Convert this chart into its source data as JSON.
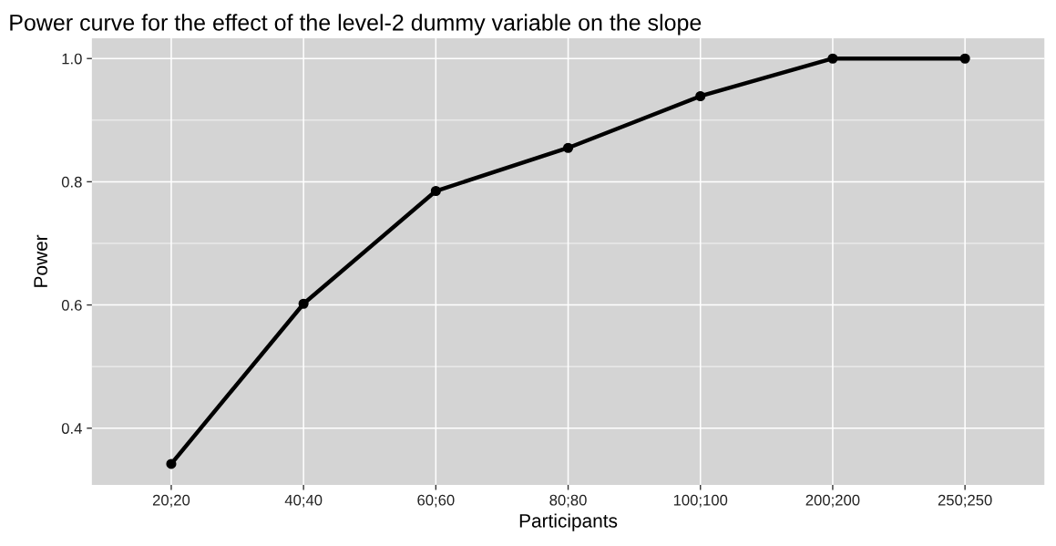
{
  "chart_data": {
    "type": "line",
    "title": "Power curve for the effect of the level-2 dummy variable on the slope",
    "xlabel": "Participants",
    "ylabel": "Power",
    "categories": [
      "20;20",
      "40;40",
      "60;60",
      "80;80",
      "100;100",
      "200;200",
      "250;250"
    ],
    "series": [
      {
        "color": "#000000",
        "values": [
          0.342,
          0.602,
          0.785,
          0.855,
          0.939,
          1.0,
          1.0
        ]
      }
    ],
    "ylim": [
      0.308,
      1.033
    ],
    "yticks": [
      {
        "value": 0.4,
        "label": "0.4"
      },
      {
        "value": 0.6,
        "label": "0.6"
      },
      {
        "value": 0.8,
        "label": "0.8"
      },
      {
        "value": 1.0,
        "label": "1.0"
      }
    ],
    "grid": true,
    "marker": "circle",
    "line_style": "solid",
    "legend": false
  }
}
